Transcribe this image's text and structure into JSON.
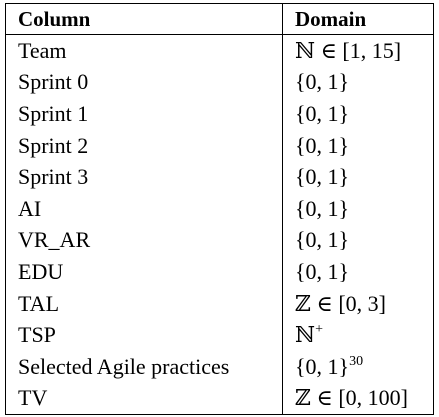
{
  "table": {
    "headers": [
      "Column",
      "Domain"
    ],
    "rows": [
      {
        "column": "Team",
        "domain": "ℕ ∈ [1, 15]",
        "sup": ""
      },
      {
        "column": "Sprint 0",
        "domain": "{0, 1}",
        "sup": ""
      },
      {
        "column": "Sprint 1",
        "domain": "{0, 1}",
        "sup": ""
      },
      {
        "column": "Sprint 2",
        "domain": "{0, 1}",
        "sup": ""
      },
      {
        "column": "Sprint 3",
        "domain": "{0, 1}",
        "sup": ""
      },
      {
        "column": "AI",
        "domain": "{0, 1}",
        "sup": ""
      },
      {
        "column": "VR_AR",
        "domain": "{0, 1}",
        "sup": ""
      },
      {
        "column": "EDU",
        "domain": "{0, 1}",
        "sup": ""
      },
      {
        "column": "TAL",
        "domain": "ℤ ∈ [0, 3]",
        "sup": ""
      },
      {
        "column": "TSP",
        "domain": "ℕ",
        "sup": "+"
      },
      {
        "column": "Selected Agile practices",
        "domain": "{0, 1}",
        "sup": "30"
      },
      {
        "column": "TV",
        "domain": "ℤ ∈ [0, 100]",
        "sup": ""
      }
    ]
  }
}
